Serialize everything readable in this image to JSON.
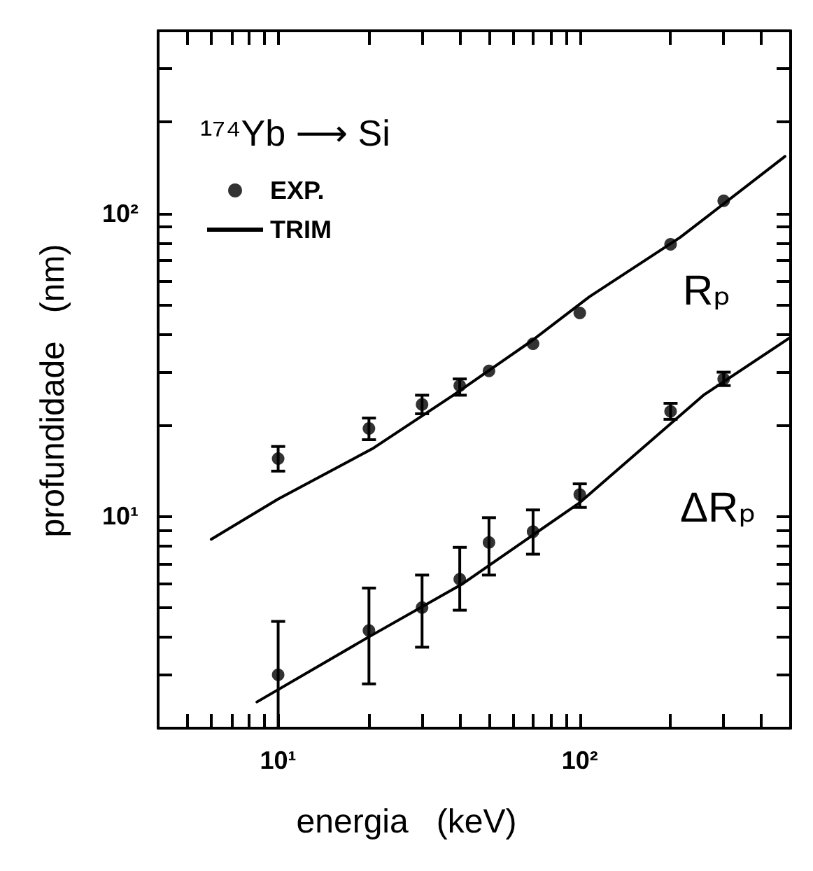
{
  "chart_data": {
    "type": "scatter",
    "xlabel": "energia   (keV)",
    "ylabel": "profundidade   (nm)",
    "legend_title": "¹⁷⁴Yb ⟶ Si",
    "log": "xy",
    "grid": false,
    "legend": "top left",
    "line_style": "solid",
    "xlim": [
      4,
      500
    ],
    "ylim": [
      2,
      400
    ],
    "xticks": [
      {
        "value": 5,
        "label": null
      },
      {
        "value": 6,
        "label": null
      },
      {
        "value": 7,
        "label": null
      },
      {
        "value": 8,
        "label": null
      },
      {
        "value": 9,
        "label": null
      },
      {
        "value": 10,
        "label": "10¹"
      },
      {
        "value": 20,
        "label": null
      },
      {
        "value": 30,
        "label": null
      },
      {
        "value": 40,
        "label": null
      },
      {
        "value": 50,
        "label": null
      },
      {
        "value": 60,
        "label": null
      },
      {
        "value": 70,
        "label": null
      },
      {
        "value": 80,
        "label": null
      },
      {
        "value": 90,
        "label": null
      },
      {
        "value": 100,
        "label": "10²"
      },
      {
        "value": 200,
        "label": null
      },
      {
        "value": 300,
        "label": null
      },
      {
        "value": 400,
        "label": null
      }
    ],
    "yticks": [
      {
        "value": 3,
        "label": null
      },
      {
        "value": 4,
        "label": null
      },
      {
        "value": 5,
        "label": null
      },
      {
        "value": 6,
        "label": null
      },
      {
        "value": 7,
        "label": null
      },
      {
        "value": 8,
        "label": null
      },
      {
        "value": 9,
        "label": null
      },
      {
        "value": 10,
        "label": "10¹"
      },
      {
        "value": 20,
        "label": null
      },
      {
        "value": 30,
        "label": null
      },
      {
        "value": 40,
        "label": null
      },
      {
        "value": 50,
        "label": null
      },
      {
        "value": 60,
        "label": null
      },
      {
        "value": 70,
        "label": null
      },
      {
        "value": 80,
        "label": null
      },
      {
        "value": 90,
        "label": null
      },
      {
        "value": 100,
        "label": "10²"
      },
      {
        "value": 200,
        "label": null
      },
      {
        "value": 300,
        "label": null
      }
    ],
    "series": [
      {
        "name": "EXP.",
        "marker": "circle",
        "color": "#000000",
        "x": [
          10,
          20,
          30,
          40,
          50,
          70,
          100,
          200,
          300
        ],
        "values": [
          15.5,
          19.5,
          23.4,
          27,
          30.2,
          37.1,
          46.9,
          79,
          110
        ],
        "errors": [
          [
            14.1,
            17
          ],
          [
            17.9,
            21.1
          ],
          [
            21.8,
            25.1
          ],
          [
            25.1,
            28.4
          ],
          null,
          null,
          null,
          null,
          null
        ]
      },
      {
        "marker": "circle",
        "color": "#000000",
        "x": [
          10,
          20,
          30,
          40,
          50,
          70,
          100,
          200,
          300
        ],
        "values": [
          3,
          4.2,
          5,
          6.2,
          8.2,
          8.9,
          11.8,
          22.2,
          28.4
        ],
        "errors": [
          [
            2,
            4.5
          ],
          [
            2.8,
            5.8
          ],
          [
            3.7,
            6.4
          ],
          [
            4.9,
            7.9
          ],
          [
            6.4,
            9.9
          ],
          [
            7.5,
            10.5
          ],
          [
            10.7,
            12.8
          ],
          [
            20.9,
            23.6
          ],
          [
            27,
            29.9
          ]
        ]
      },
      {
        "name": "TRIM",
        "type": "line",
        "marker": "none",
        "color": "#000000",
        "x": [
          6,
          10,
          20.5,
          38.1,
          68.9,
          107.6,
          215,
          479
        ],
        "values": [
          8.4,
          11.4,
          16.7,
          25.1,
          37.8,
          53,
          83.2,
          154
        ]
      },
      {
        "type": "line",
        "marker": "none",
        "color": "#000000",
        "x": [
          8.5,
          19.8,
          41,
          100,
          257,
          500
        ],
        "values": [
          2.44,
          3.98,
          6,
          11.1,
          25.1,
          39
        ]
      }
    ],
    "annotations": [
      "Rₚ",
      "ΔRₚ"
    ]
  }
}
